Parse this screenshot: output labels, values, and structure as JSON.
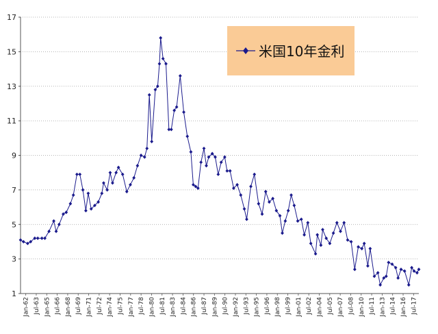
{
  "chart_data": {
    "type": "line",
    "title": "",
    "xlabel": "",
    "ylabel": "",
    "ylim": [
      1,
      17
    ],
    "yticks": [
      1,
      3,
      5,
      7,
      9,
      11,
      13,
      15,
      17
    ],
    "xlim": [
      "1962-01",
      "2017-12"
    ],
    "x_tick_labels": [
      "Jan-62",
      "Jul-63",
      "Jan-65",
      "Jul-66",
      "Jan-68",
      "Jul-69",
      "Jan-71",
      "Jul-72",
      "Jan-74",
      "Jul-75",
      "Jan-77",
      "Jul-78",
      "Jan-80",
      "Jul-81",
      "Jan-83",
      "Jul-84",
      "Jan-86",
      "Jul-87",
      "Jan-89",
      "Jul-90",
      "Jan-92",
      "Jul-93",
      "Jan-95",
      "Jul-96",
      "Jan-98",
      "Jul-99",
      "Jan-01",
      "Jul-02",
      "Jan-04",
      "Jul-05",
      "Jan-07",
      "Jul-08",
      "Jan-10",
      "Jul-11",
      "Jan-13",
      "Jul-14",
      "Jan-16",
      "Jul-17"
    ],
    "grid": "horizontal dotted",
    "legend": "top-right",
    "line_color": "#1A1A8C",
    "series": [
      {
        "name": "米国10年金利",
        "x": [
          "1962-01",
          "1962-06",
          "1963-01",
          "1963-06",
          "1964-01",
          "1964-06",
          "1965-01",
          "1965-06",
          "1966-01",
          "1966-09",
          "1967-01",
          "1967-06",
          "1968-01",
          "1968-06",
          "1969-01",
          "1969-06",
          "1969-12",
          "1970-05",
          "1970-10",
          "1971-03",
          "1971-07",
          "1971-12",
          "1972-06",
          "1972-12",
          "1973-06",
          "1973-09",
          "1974-03",
          "1974-08",
          "1974-12",
          "1975-06",
          "1975-10",
          "1976-05",
          "1976-12",
          "1977-06",
          "1977-12",
          "1978-06",
          "1978-12",
          "1979-06",
          "1979-10",
          "1980-02",
          "1980-06",
          "1980-12",
          "1981-04",
          "1981-07",
          "1981-09",
          "1982-01",
          "1982-06",
          "1982-11",
          "1983-03",
          "1983-08",
          "1983-12",
          "1984-06",
          "1984-12",
          "1985-06",
          "1985-12",
          "1986-04",
          "1986-08",
          "1986-12",
          "1987-05",
          "1987-10",
          "1988-02",
          "1988-06",
          "1988-12",
          "1989-05",
          "1989-10",
          "1990-03",
          "1990-09",
          "1991-01",
          "1991-06",
          "1991-12",
          "1992-06",
          "1992-12",
          "1993-06",
          "1993-10",
          "1994-05",
          "1994-11",
          "1995-06",
          "1995-12",
          "1996-06",
          "1996-12",
          "1997-06",
          "1997-12",
          "1998-06",
          "1998-10",
          "1999-03",
          "1999-08",
          "2000-01",
          "2000-06",
          "2000-12",
          "2001-06",
          "2001-11",
          "2002-05",
          "2002-10",
          "2003-06",
          "2003-09",
          "2004-03",
          "2004-06",
          "2004-12",
          "2005-06",
          "2005-12",
          "2006-06",
          "2006-12",
          "2007-06",
          "2007-12",
          "2008-06",
          "2008-12",
          "2009-06",
          "2009-12",
          "2010-04",
          "2010-10",
          "2011-02",
          "2011-09",
          "2012-03",
          "2012-07",
          "2013-01",
          "2013-05",
          "2013-09",
          "2014-03",
          "2014-09",
          "2015-01",
          "2015-06",
          "2015-12",
          "2016-07",
          "2016-12",
          "2017-04",
          "2017-09",
          "2017-12"
        ],
        "values": [
          4.1,
          4.0,
          3.9,
          4.0,
          4.2,
          4.2,
          4.2,
          4.2,
          4.6,
          5.2,
          4.6,
          5.0,
          5.6,
          5.7,
          6.2,
          6.7,
          7.9,
          7.9,
          7.0,
          5.8,
          6.8,
          5.9,
          6.1,
          6.3,
          6.8,
          7.4,
          7.0,
          8.0,
          7.4,
          8.0,
          8.3,
          7.9,
          6.9,
          7.3,
          7.7,
          8.4,
          9.0,
          8.9,
          9.4,
          12.5,
          9.8,
          12.8,
          13.0,
          14.3,
          15.8,
          14.6,
          14.3,
          10.5,
          10.5,
          11.6,
          11.8,
          13.6,
          11.5,
          10.1,
          9.2,
          7.3,
          7.2,
          7.1,
          8.6,
          9.4,
          8.4,
          8.9,
          9.1,
          8.9,
          7.9,
          8.6,
          8.9,
          8.1,
          8.1,
          7.1,
          7.3,
          6.7,
          5.9,
          5.3,
          7.2,
          7.9,
          6.2,
          5.6,
          6.9,
          6.3,
          6.5,
          5.8,
          5.5,
          4.5,
          5.2,
          5.8,
          6.7,
          6.1,
          5.2,
          5.3,
          4.4,
          5.1,
          3.9,
          3.3,
          4.4,
          3.8,
          4.7,
          4.2,
          3.9,
          4.5,
          5.1,
          4.6,
          5.1,
          4.1,
          4.0,
          2.4,
          3.7,
          3.6,
          3.9,
          2.6,
          3.6,
          2.0,
          2.2,
          1.5,
          1.9,
          2.0,
          2.8,
          2.7,
          2.5,
          1.9,
          2.4,
          2.3,
          1.5,
          2.5,
          2.3,
          2.2,
          2.4
        ]
      }
    ]
  }
}
